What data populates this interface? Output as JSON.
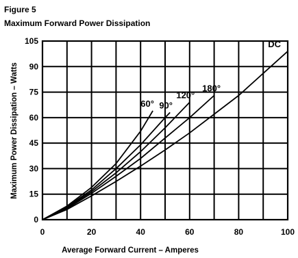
{
  "chart_data": {
    "type": "line",
    "figure_label": "Figure 5",
    "title": "Maximum Forward Power Dissipation",
    "xlabel": "Average Forward Current – Amperes",
    "ylabel": "Maximum Power Dissipation – Watts",
    "xlim": [
      0,
      100
    ],
    "ylim": [
      0,
      105
    ],
    "x_ticks": [
      0,
      20,
      40,
      60,
      80,
      100
    ],
    "y_ticks": [
      0,
      15,
      30,
      45,
      60,
      75,
      90,
      105
    ],
    "x_gridlines": [
      0,
      10,
      20,
      30,
      40,
      50,
      60,
      70,
      80,
      90,
      100
    ],
    "y_gridlines": [
      0,
      15,
      30,
      45,
      60,
      75,
      90,
      105
    ],
    "grid": true,
    "series": [
      {
        "name": "60°",
        "label": "60°",
        "x": [
          0,
          10,
          20,
          30,
          40,
          45
        ],
        "y": [
          0,
          8,
          19,
          33,
          52,
          64
        ]
      },
      {
        "name": "90°",
        "label": "90°",
        "x": [
          0,
          10,
          20,
          30,
          40,
          50,
          52
        ],
        "y": [
          0,
          7.5,
          17.5,
          30,
          44,
          60,
          63
        ]
      },
      {
        "name": "120°",
        "label": "120°",
        "x": [
          0,
          10,
          20,
          30,
          40,
          50,
          60
        ],
        "y": [
          0,
          7,
          16.5,
          27.5,
          40,
          54,
          69
        ]
      },
      {
        "name": "180°",
        "label": "180°",
        "x": [
          0,
          10,
          20,
          30,
          40,
          50,
          60,
          70
        ],
        "y": [
          0,
          6.5,
          15.5,
          25.5,
          36,
          48,
          60,
          73
        ]
      },
      {
        "name": "DC",
        "label": "DC",
        "x": [
          0,
          10,
          20,
          30,
          40,
          50,
          60,
          70,
          80,
          90,
          100
        ],
        "y": [
          0,
          6,
          14,
          22.5,
          31.5,
          41,
          51,
          62,
          73,
          86,
          99
        ]
      }
    ]
  }
}
